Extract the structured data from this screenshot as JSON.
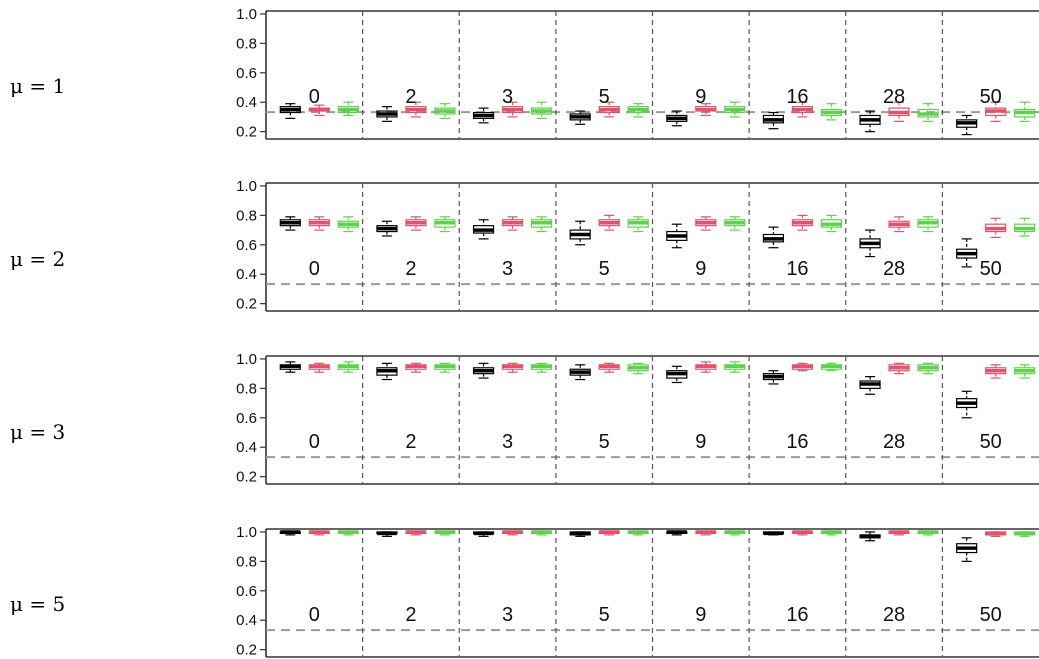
{
  "colors": {
    "series_0": "#000000",
    "series_1": "#DF536B",
    "series_2": "#61D04F",
    "reference_line": "#9a9a9a",
    "separator": "#555555",
    "axis": "#333333"
  },
  "chart_data": {
    "type": "box",
    "groups": [
      "0",
      "2",
      "3",
      "5",
      "9",
      "16",
      "28",
      "50"
    ],
    "y_ticks": [
      "0.2",
      "0.4",
      "0.6",
      "0.8",
      "1.0"
    ],
    "reference_line_y": 0.333,
    "vertical_separators": true,
    "panels": [
      {
        "label": "μ = 1",
        "ylim": [
          0.15,
          1.02
        ],
        "group_label_y": 0.38,
        "boxes": [
          [
            [
              0.29,
              0.33,
              0.35,
              0.37,
              0.39
            ],
            [
              0.31,
              0.34,
              0.35,
              0.36,
              0.38
            ],
            [
              0.31,
              0.33,
              0.35,
              0.37,
              0.4
            ]
          ],
          [
            [
              0.27,
              0.3,
              0.32,
              0.34,
              0.37
            ],
            [
              0.3,
              0.33,
              0.35,
              0.37,
              0.4
            ],
            [
              0.29,
              0.32,
              0.34,
              0.36,
              0.39
            ]
          ],
          [
            [
              0.26,
              0.29,
              0.31,
              0.33,
              0.36
            ],
            [
              0.3,
              0.33,
              0.35,
              0.37,
              0.4
            ],
            [
              0.29,
              0.32,
              0.34,
              0.36,
              0.4
            ]
          ],
          [
            [
              0.25,
              0.28,
              0.3,
              0.32,
              0.34
            ],
            [
              0.3,
              0.33,
              0.35,
              0.37,
              0.4
            ],
            [
              0.3,
              0.33,
              0.35,
              0.37,
              0.39
            ]
          ],
          [
            [
              0.24,
              0.27,
              0.29,
              0.31,
              0.34
            ],
            [
              0.31,
              0.34,
              0.35,
              0.37,
              0.39
            ],
            [
              0.3,
              0.33,
              0.35,
              0.37,
              0.4
            ]
          ],
          [
            [
              0.22,
              0.26,
              0.28,
              0.31,
              0.33
            ],
            [
              0.3,
              0.33,
              0.35,
              0.37,
              0.4
            ],
            [
              0.28,
              0.31,
              0.33,
              0.35,
              0.39
            ]
          ],
          [
            [
              0.2,
              0.25,
              0.28,
              0.31,
              0.34
            ],
            [
              0.27,
              0.31,
              0.33,
              0.36,
              0.4
            ],
            [
              0.27,
              0.3,
              0.32,
              0.35,
              0.39
            ]
          ],
          [
            [
              0.18,
              0.23,
              0.26,
              0.28,
              0.31
            ],
            [
              0.27,
              0.31,
              0.34,
              0.36,
              0.4
            ],
            [
              0.27,
              0.3,
              0.33,
              0.35,
              0.4
            ]
          ]
        ]
      },
      {
        "label": "μ = 2",
        "ylim": [
          0.15,
          1.02
        ],
        "group_label_y": 0.38,
        "boxes": [
          [
            [
              0.7,
              0.73,
              0.75,
              0.77,
              0.79
            ],
            [
              0.7,
              0.73,
              0.75,
              0.77,
              0.79
            ],
            [
              0.69,
              0.72,
              0.74,
              0.76,
              0.79
            ]
          ],
          [
            [
              0.66,
              0.69,
              0.71,
              0.73,
              0.76
            ],
            [
              0.7,
              0.73,
              0.75,
              0.77,
              0.79
            ],
            [
              0.69,
              0.72,
              0.75,
              0.77,
              0.79
            ]
          ],
          [
            [
              0.64,
              0.68,
              0.7,
              0.73,
              0.77
            ],
            [
              0.7,
              0.73,
              0.75,
              0.77,
              0.79
            ],
            [
              0.69,
              0.72,
              0.75,
              0.77,
              0.79
            ]
          ],
          [
            [
              0.6,
              0.64,
              0.67,
              0.7,
              0.76
            ],
            [
              0.7,
              0.73,
              0.75,
              0.77,
              0.8
            ],
            [
              0.69,
              0.72,
              0.75,
              0.77,
              0.79
            ]
          ],
          [
            [
              0.58,
              0.63,
              0.66,
              0.69,
              0.74
            ],
            [
              0.7,
              0.73,
              0.75,
              0.77,
              0.79
            ],
            [
              0.7,
              0.73,
              0.75,
              0.77,
              0.79
            ]
          ],
          [
            [
              0.58,
              0.62,
              0.64,
              0.67,
              0.72
            ],
            [
              0.7,
              0.73,
              0.75,
              0.77,
              0.8
            ],
            [
              0.69,
              0.72,
              0.74,
              0.77,
              0.8
            ]
          ],
          [
            [
              0.52,
              0.58,
              0.61,
              0.64,
              0.7
            ],
            [
              0.69,
              0.72,
              0.74,
              0.76,
              0.79
            ],
            [
              0.69,
              0.72,
              0.75,
              0.77,
              0.79
            ]
          ],
          [
            [
              0.45,
              0.51,
              0.54,
              0.57,
              0.64
            ],
            [
              0.65,
              0.69,
              0.71,
              0.74,
              0.78
            ],
            [
              0.66,
              0.69,
              0.71,
              0.74,
              0.78
            ]
          ]
        ]
      },
      {
        "label": "μ = 3",
        "ylim": [
          0.15,
          1.02
        ],
        "group_label_y": 0.38,
        "boxes": [
          [
            [
              0.91,
              0.93,
              0.95,
              0.96,
              0.98
            ],
            [
              0.91,
              0.93,
              0.95,
              0.96,
              0.97
            ],
            [
              0.91,
              0.93,
              0.95,
              0.96,
              0.98
            ]
          ],
          [
            [
              0.86,
              0.89,
              0.92,
              0.94,
              0.97
            ],
            [
              0.91,
              0.93,
              0.95,
              0.96,
              0.97
            ],
            [
              0.91,
              0.93,
              0.95,
              0.96,
              0.97
            ]
          ],
          [
            [
              0.87,
              0.9,
              0.92,
              0.94,
              0.97
            ],
            [
              0.91,
              0.93,
              0.95,
              0.96,
              0.97
            ],
            [
              0.91,
              0.93,
              0.95,
              0.96,
              0.97
            ]
          ],
          [
            [
              0.86,
              0.89,
              0.91,
              0.93,
              0.96
            ],
            [
              0.91,
              0.93,
              0.95,
              0.96,
              0.97
            ],
            [
              0.9,
              0.92,
              0.94,
              0.96,
              0.97
            ]
          ],
          [
            [
              0.84,
              0.87,
              0.9,
              0.92,
              0.95
            ],
            [
              0.91,
              0.93,
              0.95,
              0.96,
              0.98
            ],
            [
              0.91,
              0.93,
              0.95,
              0.96,
              0.98
            ]
          ],
          [
            [
              0.83,
              0.86,
              0.88,
              0.9,
              0.92
            ],
            [
              0.92,
              0.93,
              0.95,
              0.96,
              0.97
            ],
            [
              0.92,
              0.93,
              0.95,
              0.96,
              0.97
            ]
          ],
          [
            [
              0.76,
              0.8,
              0.83,
              0.85,
              0.88
            ],
            [
              0.9,
              0.92,
              0.94,
              0.96,
              0.97
            ],
            [
              0.9,
              0.92,
              0.94,
              0.96,
              0.97
            ]
          ],
          [
            [
              0.6,
              0.67,
              0.7,
              0.73,
              0.78
            ],
            [
              0.87,
              0.9,
              0.92,
              0.94,
              0.96
            ],
            [
              0.87,
              0.9,
              0.92,
              0.94,
              0.96
            ]
          ]
        ]
      },
      {
        "label": "μ = 5",
        "ylim": [
          0.15,
          1.02
        ],
        "group_label_y": 0.38,
        "boxes": [
          [
            [
              0.98,
              0.99,
              1.0,
              1.0,
              1.0
            ],
            [
              0.98,
              0.99,
              1.0,
              1.0,
              1.0
            ],
            [
              0.98,
              0.99,
              1.0,
              1.0,
              1.0
            ]
          ],
          [
            [
              0.97,
              0.99,
              0.99,
              1.0,
              1.0
            ],
            [
              0.98,
              0.99,
              1.0,
              1.0,
              1.0
            ],
            [
              0.98,
              0.99,
              1.0,
              1.0,
              1.0
            ]
          ],
          [
            [
              0.97,
              0.99,
              0.99,
              1.0,
              1.0
            ],
            [
              0.98,
              0.99,
              1.0,
              1.0,
              1.0
            ],
            [
              0.98,
              0.99,
              1.0,
              1.0,
              1.0
            ]
          ],
          [
            [
              0.97,
              0.98,
              0.99,
              1.0,
              1.0
            ],
            [
              0.98,
              0.99,
              1.0,
              1.0,
              1.0
            ],
            [
              0.98,
              0.99,
              1.0,
              1.0,
              1.0
            ]
          ],
          [
            [
              0.98,
              0.99,
              1.0,
              1.0,
              1.0
            ],
            [
              0.98,
              0.99,
              1.0,
              1.0,
              1.0
            ],
            [
              0.98,
              0.99,
              1.0,
              1.0,
              1.0
            ]
          ],
          [
            [
              0.98,
              0.99,
              0.99,
              1.0,
              1.0
            ],
            [
              0.98,
              0.99,
              1.0,
              1.0,
              1.0
            ],
            [
              0.98,
              0.99,
              1.0,
              1.0,
              1.0
            ]
          ],
          [
            [
              0.94,
              0.96,
              0.97,
              0.98,
              1.0
            ],
            [
              0.98,
              0.99,
              1.0,
              1.0,
              1.0
            ],
            [
              0.98,
              0.99,
              1.0,
              1.0,
              1.0
            ]
          ],
          [
            [
              0.8,
              0.86,
              0.89,
              0.92,
              0.96
            ],
            [
              0.97,
              0.98,
              0.99,
              1.0,
              1.0
            ],
            [
              0.97,
              0.98,
              0.99,
              1.0,
              1.0
            ]
          ]
        ]
      }
    ]
  }
}
